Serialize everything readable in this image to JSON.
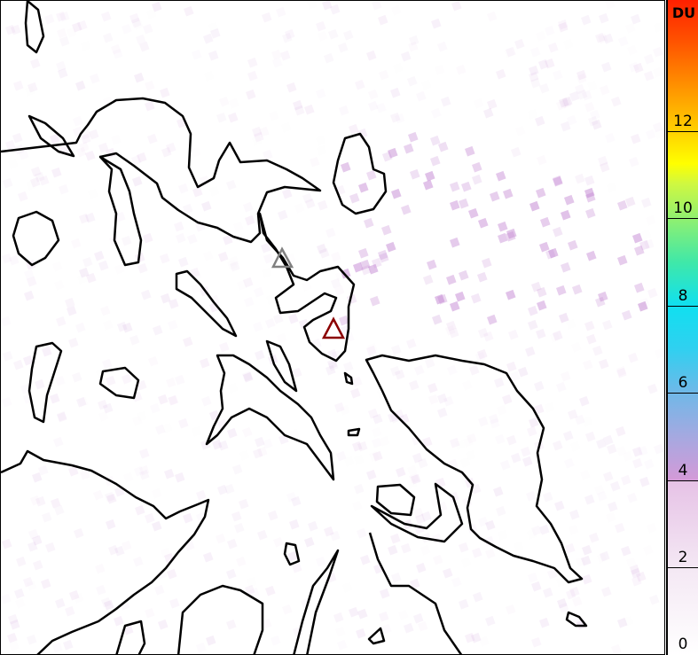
{
  "colorbar": {
    "unit": "DU",
    "min": 0,
    "max": 15,
    "ticks": [
      "0",
      "2",
      "4",
      "6",
      "8",
      "10",
      "12"
    ],
    "colors": {
      "low": "#ffffff",
      "mid": "#10e0f0",
      "high": "#ff2000"
    }
  },
  "markers": [
    {
      "name": "gray-volcano-marker",
      "color": "#808080"
    },
    {
      "name": "red-volcano-marker",
      "color": "#8b0000"
    }
  ],
  "map": {
    "coastline_color": "#000000",
    "signal_color": "#c080d0"
  }
}
